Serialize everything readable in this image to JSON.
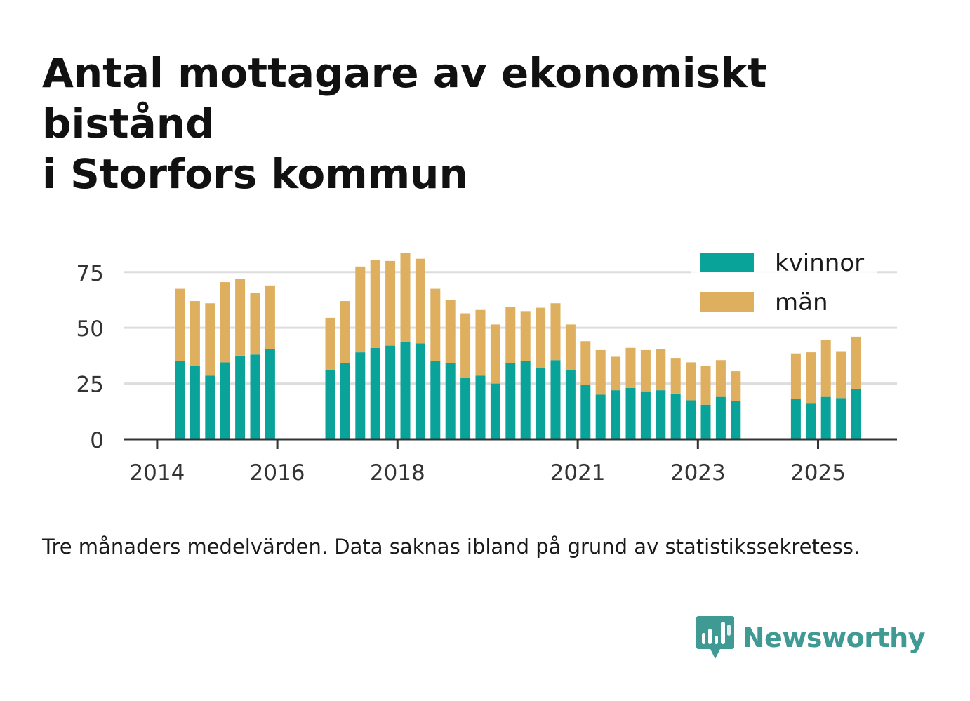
{
  "title_line1": "Antal mottagare av ekonomiskt bistånd",
  "title_line2": "i Storfors kommun",
  "footnote": "Tre månaders medelvärden. Data saknas ibland på grund av statistikssekretess.",
  "brand": {
    "name": "Newsworthy",
    "icon": "newsworthy-logo-icon"
  },
  "colors": {
    "kvinnor": "#0aa399",
    "man": "#deaf5e",
    "grid": "#dddddd",
    "axis": "#333333",
    "brand": "#3f9a94"
  },
  "chart_data": {
    "type": "bar",
    "stacked": true,
    "grid": true,
    "legend_position": "top-right",
    "x_unit": "quarter",
    "ylim": [
      0,
      85
    ],
    "yticks": [
      0,
      25,
      50,
      75
    ],
    "xticks": [
      "2014",
      "2016",
      "2018",
      "2021",
      "2023",
      "2025"
    ],
    "categories": [
      "2014-Q2",
      "2014-Q3",
      "2014-Q4",
      "2015-Q1",
      "2015-Q2",
      "2015-Q3",
      "2015-Q4",
      "2016-Q1",
      "2016-Q2",
      "2016-Q3",
      "2016-Q4",
      "2017-Q1",
      "2017-Q2",
      "2017-Q3",
      "2017-Q4",
      "2018-Q1",
      "2018-Q2",
      "2018-Q3",
      "2018-Q4",
      "2019-Q1",
      "2019-Q2",
      "2019-Q3",
      "2019-Q4",
      "2020-Q1",
      "2020-Q2",
      "2020-Q3",
      "2020-Q4",
      "2021-Q1",
      "2021-Q2",
      "2021-Q3",
      "2021-Q4",
      "2022-Q1",
      "2022-Q2",
      "2022-Q3",
      "2022-Q4",
      "2023-Q1",
      "2023-Q2",
      "2023-Q3",
      "2023-Q4",
      "2024-Q1",
      "2024-Q2",
      "2024-Q3",
      "2024-Q4",
      "2025-Q1",
      "2025-Q2",
      "2025-Q3"
    ],
    "series": [
      {
        "name": "kvinnor",
        "values": [
          35,
          33,
          28.5,
          34.5,
          37.5,
          38,
          40.5,
          null,
          null,
          null,
          31,
          34,
          39,
          41,
          42,
          43.5,
          43,
          35,
          34,
          27.5,
          28.5,
          25,
          34,
          35,
          32,
          35.5,
          31,
          24.5,
          20,
          22,
          23,
          21.5,
          22,
          20.5,
          17.5,
          15.5,
          19,
          17,
          null,
          null,
          null,
          18,
          16,
          19,
          18.5,
          22.5
        ]
      },
      {
        "name": "män",
        "values": [
          32.5,
          29,
          32.5,
          36,
          34.5,
          27.5,
          28.5,
          null,
          null,
          null,
          23.5,
          28,
          38.5,
          39.5,
          38,
          40,
          38,
          32.5,
          28.5,
          29,
          29.5,
          26.5,
          25.5,
          22.5,
          27,
          25.5,
          20.5,
          19.5,
          20,
          15,
          18,
          18.5,
          18.5,
          16,
          17,
          17.5,
          16.5,
          13.5,
          null,
          null,
          null,
          20.5,
          23,
          25.5,
          21,
          23.5
        ]
      }
    ]
  },
  "chart_data_note_removed": true
}
